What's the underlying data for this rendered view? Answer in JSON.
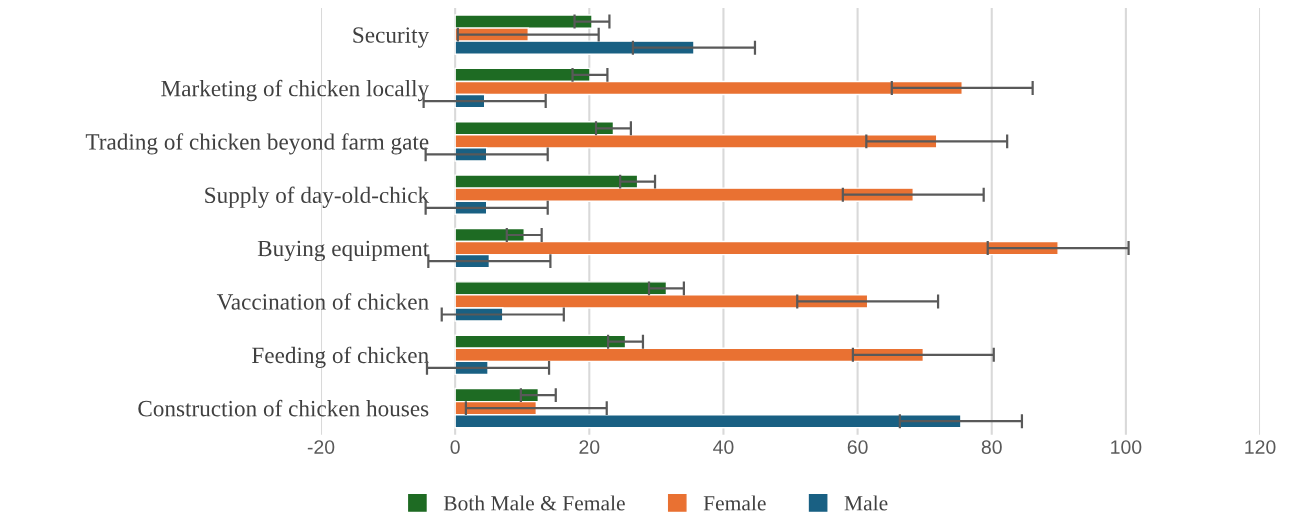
{
  "chart_data": {
    "type": "bar",
    "orientation": "horizontal",
    "categories": [
      "Security",
      "Marketing of chicken locally",
      "Trading of chicken beyond farm gate",
      "Supply of day-old-chick",
      "Buying equipment",
      "Vaccination of chicken",
      "Feeding of chicken",
      "Construction of chicken houses"
    ],
    "series": [
      {
        "name": "Both Male & Female",
        "color": "#1e6b23",
        "values": [
          20.4,
          20.1,
          23.6,
          27.2,
          10.3,
          31.5,
          25.4,
          12.4
        ],
        "errors": [
          2.6,
          2.6,
          2.6,
          2.6,
          2.6,
          2.6,
          2.6,
          2.6
        ]
      },
      {
        "name": "Female",
        "color": "#e97132",
        "values": [
          10.9,
          75.6,
          71.8,
          68.3,
          89.9,
          61.5,
          69.8,
          12.1
        ],
        "errors": [
          10.5,
          10.5,
          10.5,
          10.5,
          10.5,
          10.5,
          10.5,
          10.5
        ]
      },
      {
        "name": "Male",
        "color": "#196083",
        "values": [
          35.6,
          4.4,
          4.7,
          4.7,
          5.1,
          7.1,
          4.9,
          75.4
        ],
        "errors": [
          9.1,
          9.1,
          9.1,
          9.1,
          9.1,
          9.1,
          9.1,
          9.1
        ]
      }
    ],
    "xlim": [
      -20,
      120
    ],
    "xticks": [
      -20,
      0,
      20,
      40,
      60,
      80,
      100,
      120
    ],
    "grid": "x",
    "legend": "bottom"
  }
}
